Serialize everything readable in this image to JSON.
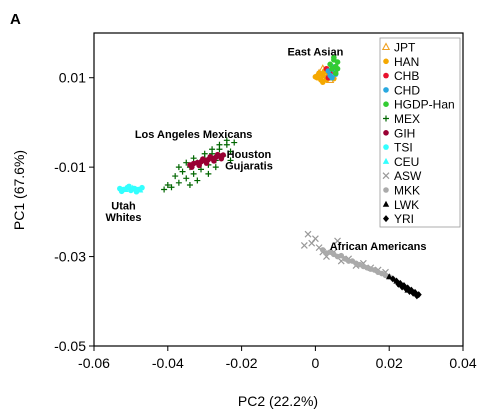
{
  "panel_label": "A",
  "chart_data": {
    "type": "scatter",
    "xlabel": "PC2 (22.2%)",
    "ylabel": "PC1 (67.6%)",
    "xlim": [
      -0.06,
      0.04
    ],
    "ylim": [
      -0.05,
      0.02
    ],
    "xticks": [
      -0.06,
      -0.04,
      -0.02,
      0,
      0.02,
      0.04
    ],
    "xtick_labels": [
      "-0.06",
      "-0.04",
      "-0.02",
      "0",
      "0.02",
      "0.04"
    ],
    "yticks": [
      0.01,
      -0.01,
      -0.03,
      -0.05
    ],
    "ytick_labels": [
      "0.01",
      "-0.01",
      "-0.03",
      "-0.05"
    ],
    "grid": false,
    "legend_position": "top-right",
    "series": [
      {
        "name": "JPT",
        "marker": "triangle-open",
        "color": "#f0a020",
        "x": [
          0.001,
          0.002,
          0.003,
          0.0005,
          0.004,
          0.0025
        ],
        "y": [
          0.011,
          0.012,
          0.01,
          0.0105,
          0.0095,
          0.0115
        ]
      },
      {
        "name": "HAN",
        "marker": "circle",
        "color": "#f5a800",
        "x": [
          0.0005,
          0.001,
          0.002,
          0.003,
          0.0025,
          0.004,
          0.0015,
          0.0035,
          0.0,
          0.005,
          0.003,
          0.002
        ],
        "y": [
          0.01,
          0.011,
          0.0105,
          0.0095,
          0.0115,
          0.01,
          0.0095,
          0.0108,
          0.0102,
          0.0098,
          0.012,
          0.009
        ]
      },
      {
        "name": "CHB",
        "marker": "circle",
        "color": "#e8112d",
        "x": [
          0.003,
          0.004,
          0.0035
        ],
        "y": [
          0.012,
          0.011,
          0.01
        ]
      },
      {
        "name": "CHD",
        "marker": "circle",
        "color": "#29a8e0",
        "x": [
          0.0035,
          0.0045,
          0.004,
          0.005,
          0.0055,
          0.0045
        ],
        "y": [
          0.0115,
          0.0125,
          0.0105,
          0.0118,
          0.0108,
          0.01
        ]
      },
      {
        "name": "HGDP-Han",
        "marker": "circle",
        "color": "#33cc33",
        "x": [
          0.004,
          0.005,
          0.006,
          0.0055,
          0.0045,
          0.006,
          0.005,
          0.0055
        ],
        "y": [
          0.013,
          0.014,
          0.0135,
          0.0125,
          0.012,
          0.012,
          0.0145,
          0.011
        ]
      },
      {
        "name": "MEX",
        "marker": "plus",
        "color": "#006600",
        "x": [
          -0.04,
          -0.038,
          -0.037,
          -0.036,
          -0.035,
          -0.034,
          -0.033,
          -0.032,
          -0.031,
          -0.03,
          -0.029,
          -0.028,
          -0.027,
          -0.026,
          -0.025,
          -0.024,
          -0.023,
          -0.022,
          -0.037,
          -0.035,
          -0.033,
          -0.03,
          -0.028,
          -0.026,
          -0.024,
          -0.032,
          -0.029,
          -0.027,
          -0.041,
          -0.039,
          -0.034,
          -0.023
        ],
        "y": [
          -0.014,
          -0.012,
          -0.0135,
          -0.011,
          -0.0125,
          -0.01,
          -0.0115,
          -0.009,
          -0.0105,
          -0.008,
          -0.0095,
          -0.007,
          -0.0085,
          -0.006,
          -0.0075,
          -0.005,
          -0.0065,
          -0.0045,
          -0.01,
          -0.009,
          -0.008,
          -0.007,
          -0.006,
          -0.005,
          -0.004,
          -0.013,
          -0.0115,
          -0.01,
          -0.015,
          -0.0145,
          -0.014,
          -0.0085
        ]
      },
      {
        "name": "GIH",
        "marker": "circle",
        "color": "#990033",
        "x": [
          -0.034,
          -0.033,
          -0.032,
          -0.031,
          -0.03,
          -0.029,
          -0.028,
          -0.027,
          -0.026,
          -0.025,
          -0.0335,
          -0.0315,
          -0.0295,
          -0.0275,
          -0.0255,
          -0.0305,
          -0.0285,
          -0.0265
        ],
        "y": [
          -0.0095,
          -0.0092,
          -0.009,
          -0.0088,
          -0.0085,
          -0.0083,
          -0.008,
          -0.0078,
          -0.0075,
          -0.0073,
          -0.01,
          -0.0096,
          -0.0091,
          -0.0086,
          -0.0081,
          -0.0082,
          -0.0077,
          -0.0072
        ]
      },
      {
        "name": "TSI",
        "marker": "circle",
        "color": "#33ffff",
        "x": [
          -0.053,
          -0.052,
          -0.051,
          -0.05,
          -0.049,
          -0.048,
          -0.047,
          -0.0525,
          -0.0505,
          -0.0485
        ],
        "y": [
          -0.0148,
          -0.015,
          -0.0146,
          -0.0152,
          -0.0148,
          -0.015,
          -0.0146,
          -0.0154,
          -0.0143,
          -0.0155
        ]
      },
      {
        "name": "CEU",
        "marker": "triangle",
        "color": "#33ffff",
        "x": [
          -0.0515,
          -0.0495,
          -0.0475
        ],
        "y": [
          -0.015,
          -0.0147,
          -0.0151
        ]
      },
      {
        "name": "ASW",
        "marker": "x",
        "color": "#999999",
        "x": [
          -0.002,
          -0.001,
          0.0,
          0.001,
          0.002,
          -0.003,
          0.003,
          0.005,
          0.007,
          0.009,
          0.011,
          0.013,
          0.015,
          0.017,
          0.019,
          0.006
        ],
        "y": [
          -0.025,
          -0.027,
          -0.026,
          -0.028,
          -0.029,
          -0.0275,
          -0.03,
          -0.029,
          -0.031,
          -0.0305,
          -0.032,
          -0.0315,
          -0.0325,
          -0.033,
          -0.0335,
          -0.0265
        ]
      },
      {
        "name": "MKK",
        "marker": "circle",
        "color": "#aaaaaa",
        "x": [
          0.002,
          0.004,
          0.006,
          0.008,
          0.01,
          0.012,
          0.014,
          0.016,
          0.018,
          0.02,
          0.005,
          0.007,
          0.009,
          0.011,
          0.013,
          0.015,
          0.017,
          0.019,
          0.003,
          0.021
        ],
        "y": [
          -0.0285,
          -0.029,
          -0.03,
          -0.0305,
          -0.031,
          -0.0318,
          -0.0325,
          -0.033,
          -0.0338,
          -0.0345,
          -0.0295,
          -0.0298,
          -0.031,
          -0.0315,
          -0.0322,
          -0.0328,
          -0.0335,
          -0.0342,
          -0.0292,
          -0.035
        ]
      },
      {
        "name": "LWK",
        "marker": "triangle",
        "color": "#000000",
        "x": [
          0.02,
          0.022,
          0.024,
          0.025,
          0.023
        ],
        "y": [
          -0.0345,
          -0.0355,
          -0.0365,
          -0.0375,
          -0.0362
        ]
      },
      {
        "name": "YRI",
        "marker": "diamond",
        "color": "#000000",
        "x": [
          0.021,
          0.022,
          0.023,
          0.024,
          0.025,
          0.026,
          0.027,
          0.028,
          0.0225,
          0.0235,
          0.0245,
          0.0255,
          0.0265,
          0.0275
        ],
        "y": [
          -0.035,
          -0.0355,
          -0.036,
          -0.0365,
          -0.037,
          -0.0375,
          -0.038,
          -0.0385,
          -0.0362,
          -0.0368,
          -0.0372,
          -0.0378,
          -0.0382,
          -0.0388
        ]
      }
    ],
    "annotations": [
      {
        "text": "East Asian",
        "x": 0.0,
        "y": 0.015
      },
      {
        "text": "Los Angeles Mexicans",
        "x": -0.033,
        "y": -0.0035
      },
      {
        "text": "Houston",
        "x": -0.018,
        "y": -0.008
      },
      {
        "text": "Gujaratis",
        "x": -0.018,
        "y": -0.0105
      },
      {
        "text": "Utah",
        "x": -0.052,
        "y": -0.0195
      },
      {
        "text": "Whites",
        "x": -0.052,
        "y": -0.022
      },
      {
        "text": "African Americans",
        "x": 0.017,
        "y": -0.0285
      }
    ]
  }
}
